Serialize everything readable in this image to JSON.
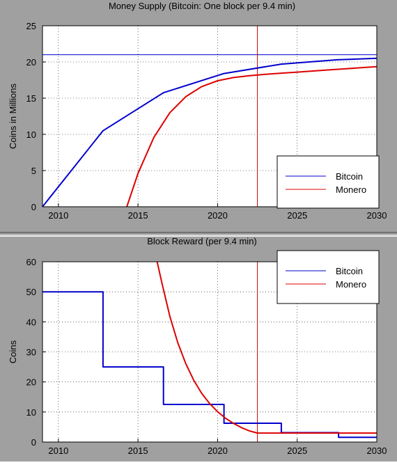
{
  "chart_data": [
    {
      "type": "line",
      "title": "Money Supply (Bitcoin: One block per 9.4 min)",
      "xlabel": "",
      "ylabel": "Coins in Millions",
      "xlim": [
        2009,
        2030
      ],
      "ylim": [
        0,
        25
      ],
      "x_ticks": [
        2010,
        2015,
        2020,
        2025,
        2030
      ],
      "y_ticks": [
        0,
        5,
        10,
        15,
        20,
        25
      ],
      "grid": true,
      "legend_position": "bottom-right",
      "reference_lines": [
        {
          "orientation": "horizontal",
          "value": 21,
          "color": "#0000cc"
        },
        {
          "orientation": "vertical",
          "value": 2022.5,
          "color": "#cc0000"
        }
      ],
      "series": [
        {
          "name": "Bitcoin",
          "color": "#0000cc",
          "x": [
            2009,
            2012.8,
            2016.6,
            2020.4,
            2024.0,
            2027.5,
            2030
          ],
          "y": [
            0,
            10.5,
            15.75,
            18.4,
            19.7,
            20.3,
            20.5
          ]
        },
        {
          "name": "Monero",
          "color": "#dd0000",
          "x": [
            2014.3,
            2015,
            2016,
            2017,
            2018,
            2019,
            2020,
            2021,
            2022,
            2023,
            2024,
            2025,
            2026,
            2027,
            2028,
            2029,
            2030
          ],
          "y": [
            0,
            4.6,
            9.6,
            13.0,
            15.2,
            16.6,
            17.4,
            17.85,
            18.1,
            18.3,
            18.45,
            18.6,
            18.75,
            18.9,
            19.05,
            19.2,
            19.35
          ]
        }
      ]
    },
    {
      "type": "line",
      "title": "Block Reward (per 9.4 min)",
      "xlabel": "",
      "ylabel": "Coins",
      "xlim": [
        2009,
        2030
      ],
      "ylim": [
        0,
        60
      ],
      "x_ticks": [
        2010,
        2015,
        2020,
        2025,
        2030
      ],
      "y_ticks": [
        0,
        10,
        20,
        30,
        40,
        50,
        60
      ],
      "grid": true,
      "legend_position": "top-right",
      "reference_lines": [
        {
          "orientation": "vertical",
          "value": 2022.5,
          "color": "#cc0000"
        }
      ],
      "series": [
        {
          "name": "Bitcoin",
          "color": "#0000cc",
          "step": true,
          "x": [
            2009,
            2012.8,
            2012.8,
            2016.6,
            2016.6,
            2020.4,
            2020.4,
            2024.0,
            2024.0,
            2027.6,
            2027.6,
            2030
          ],
          "y": [
            50,
            50,
            25,
            25,
            12.5,
            12.5,
            6.25,
            6.25,
            3.125,
            3.125,
            1.5625,
            1.5625
          ]
        },
        {
          "name": "Monero",
          "color": "#dd0000",
          "x": [
            2016.2,
            2016.5,
            2017,
            2017.5,
            2018,
            2018.5,
            2019,
            2019.5,
            2020,
            2020.5,
            2021,
            2021.5,
            2022,
            2022.5,
            2025,
            2030
          ],
          "y": [
            60,
            53.0,
            41.8,
            33.0,
            26.1,
            20.6,
            16.2,
            12.8,
            10.1,
            7.9,
            6.2,
            4.8,
            3.7,
            3.0,
            3.0,
            3.0
          ]
        }
      ]
    }
  ]
}
